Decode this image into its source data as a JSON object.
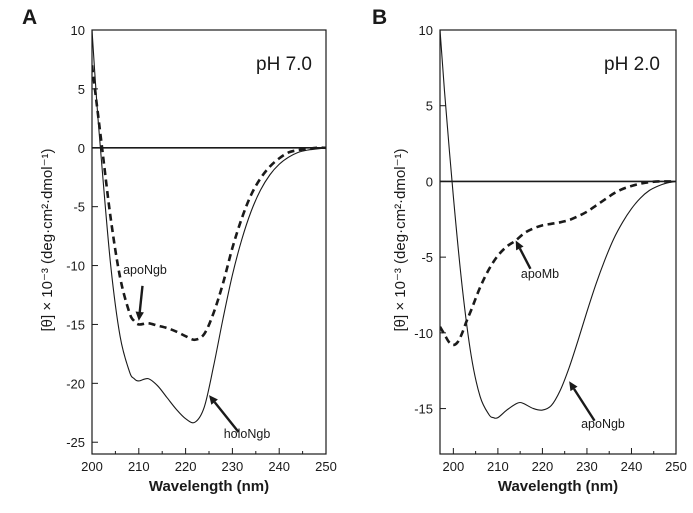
{
  "chart_data": [
    {
      "type": "line",
      "panel_letter": "A",
      "condition_label": "pH 7.0",
      "xlabel": "Wavelength (nm)",
      "ylabel": "[θ] × 10⁻³ (deg·cm²·dmol⁻¹)",
      "xlim": [
        200,
        250
      ],
      "ylim": [
        -26,
        10
      ],
      "x_ticks": [
        200,
        210,
        220,
        230,
        240,
        250
      ],
      "y_ticks": [
        10,
        5,
        0,
        -5,
        -10,
        -15,
        -20,
        -25
      ],
      "zero_line": true,
      "grid": false,
      "series": [
        {
          "name": "apoNgb",
          "style": "dashed",
          "x": [
            200,
            202,
            204,
            206,
            208,
            209,
            210,
            212,
            214,
            216,
            218,
            220,
            222,
            224,
            226,
            228,
            230,
            232,
            234,
            236,
            238,
            240,
            242,
            244,
            246,
            248,
            250
          ],
          "y": [
            7,
            0.5,
            -6,
            -11,
            -14,
            -14.7,
            -15,
            -14.9,
            -15.1,
            -15.3,
            -15.6,
            -16,
            -16.3,
            -15.8,
            -14,
            -11.5,
            -8.5,
            -6,
            -4,
            -2.6,
            -1.6,
            -0.9,
            -0.4,
            -0.2,
            -0.1,
            0,
            0
          ]
        },
        {
          "name": "holoNgb",
          "style": "solid",
          "x": [
            200,
            201,
            202,
            204,
            206,
            208,
            209,
            210,
            212,
            214,
            216,
            218,
            220,
            222,
            224,
            226,
            228,
            230,
            232,
            234,
            236,
            238,
            240,
            242,
            244,
            246,
            248,
            250
          ],
          "y": [
            10,
            4,
            -1,
            -10,
            -16,
            -19,
            -19.6,
            -19.8,
            -19.6,
            -20.2,
            -21.2,
            -22.2,
            -23,
            -23.3,
            -22,
            -18.5,
            -14.5,
            -10.8,
            -7.8,
            -5.4,
            -3.6,
            -2.3,
            -1.4,
            -0.8,
            -0.4,
            -0.2,
            -0.1,
            0
          ]
        }
      ],
      "annotations": [
        {
          "text": "apoNgb",
          "points_to": [
            210,
            -14.7
          ]
        },
        {
          "text": "holoNgb",
          "points_to": [
            225,
            -21
          ]
        }
      ]
    },
    {
      "type": "line",
      "panel_letter": "B",
      "condition_label": "pH 2.0",
      "xlabel": "Wavelength (nm)",
      "ylabel": "[θ] × 10⁻³ (deg·cm²·dmol⁻¹)",
      "xlim": [
        197,
        250
      ],
      "ylim": [
        -18,
        10
      ],
      "x_ticks": [
        200,
        210,
        220,
        230,
        240,
        250
      ],
      "y_ticks": [
        10,
        5,
        0,
        -5,
        -10,
        -15
      ],
      "zero_line": true,
      "grid": false,
      "series": [
        {
          "name": "apoMb",
          "style": "dashed",
          "x": [
            197,
            198,
            199,
            200,
            201,
            202,
            203,
            204,
            206,
            208,
            210,
            212,
            214,
            216,
            218,
            220,
            222,
            224,
            226,
            228,
            230,
            232,
            234,
            236,
            238,
            240,
            242,
            244,
            246,
            248,
            250
          ],
          "y": [
            -9.6,
            -10.1,
            -10.6,
            -10.8,
            -10.6,
            -10,
            -9.2,
            -8.5,
            -7,
            -5.8,
            -4.9,
            -4.3,
            -3.9,
            -3.4,
            -3.1,
            -2.9,
            -2.8,
            -2.7,
            -2.55,
            -2.3,
            -2,
            -1.6,
            -1.2,
            -0.8,
            -0.5,
            -0.3,
            -0.15,
            -0.05,
            0,
            0,
            0
          ]
        },
        {
          "name": "apoNgb",
          "style": "solid",
          "x": [
            197,
            198,
            200,
            202,
            204,
            206,
            208,
            209,
            210,
            212,
            214,
            215,
            216,
            218,
            220,
            222,
            224,
            226,
            228,
            230,
            232,
            234,
            236,
            238,
            240,
            242,
            244,
            246,
            248,
            250
          ],
          "y": [
            10,
            6,
            -1,
            -7,
            -11.5,
            -14.2,
            -15.4,
            -15.6,
            -15.6,
            -15.1,
            -14.7,
            -14.6,
            -14.7,
            -15,
            -15.1,
            -14.8,
            -13.8,
            -12.3,
            -10.5,
            -8.6,
            -6.8,
            -5.2,
            -3.8,
            -2.7,
            -1.8,
            -1.1,
            -0.6,
            -0.3,
            -0.1,
            0
          ]
        }
      ],
      "annotations": [
        {
          "text": "apoMb",
          "points_to": [
            214,
            -3.9
          ]
        },
        {
          "text": "apoNgb",
          "points_to": [
            226,
            -13.2
          ]
        }
      ]
    }
  ]
}
